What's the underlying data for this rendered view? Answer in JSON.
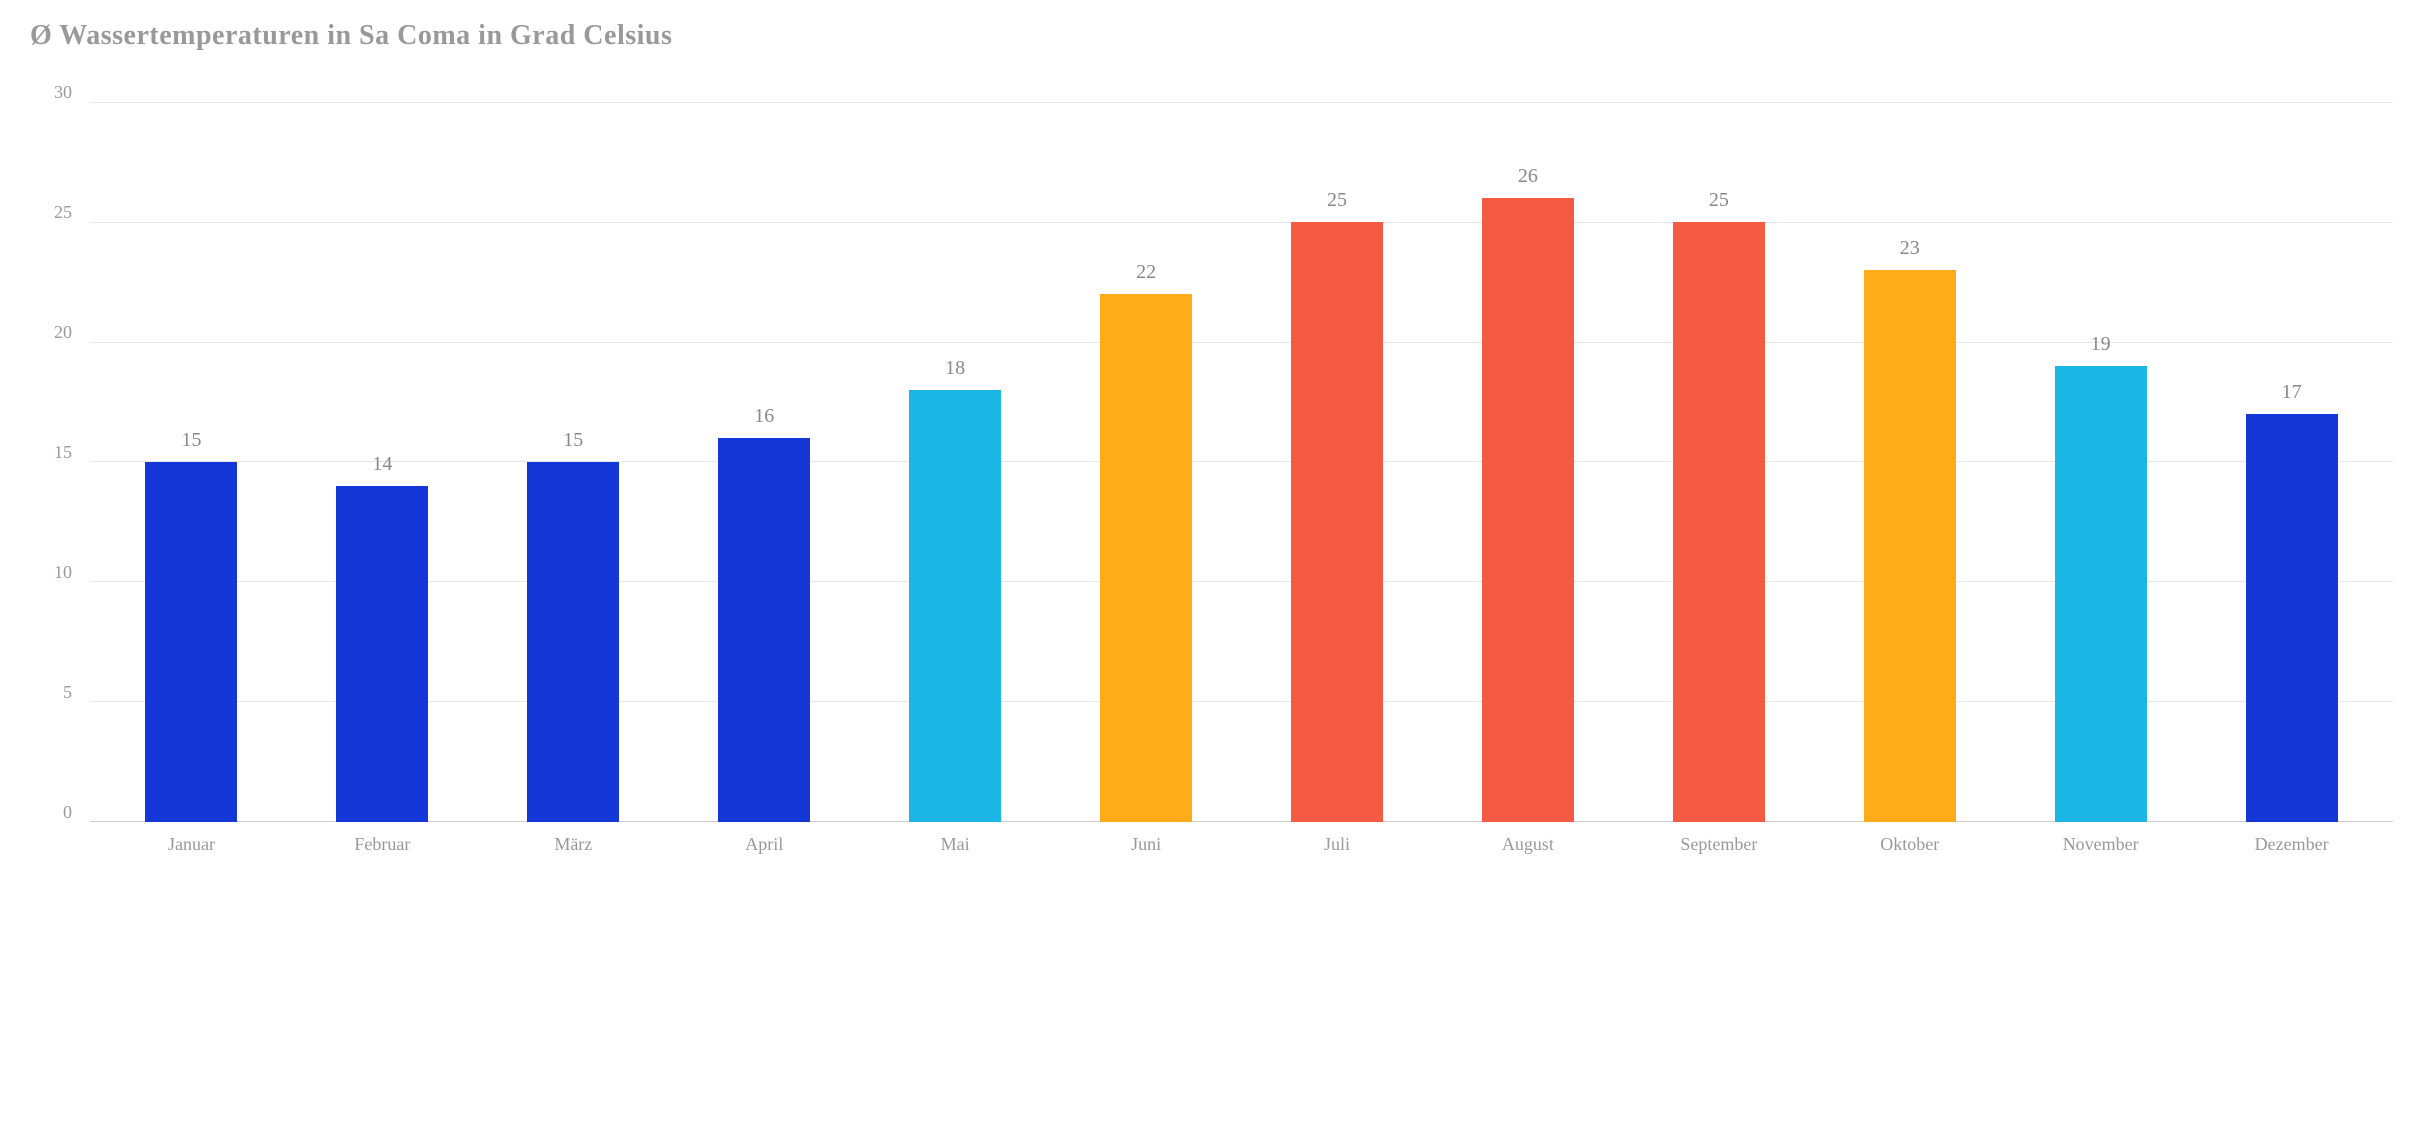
{
  "chart": {
    "type": "bar",
    "title": "Ø Wassertemperaturen in Sa Coma in Grad Celsius",
    "title_color": "#999999",
    "title_fontsize": 28,
    "background_color": "#ffffff",
    "grid_color": "#e6e6e6",
    "axis_label_color": "#999999",
    "axis_label_fontsize": 18,
    "value_label_color": "#888888",
    "value_label_fontsize": 20,
    "ylim": [
      0,
      30
    ],
    "ytick_step": 5,
    "yticks": [
      30,
      25,
      20,
      15,
      10,
      5,
      0
    ],
    "bar_width": 0.72,
    "categories": [
      "Januar",
      "Februar",
      "März",
      "April",
      "Mai",
      "Juni",
      "Juli",
      "August",
      "September",
      "Oktober",
      "November",
      "Dezember"
    ],
    "values": [
      15,
      14,
      15,
      16,
      18,
      22,
      25,
      26,
      25,
      23,
      19,
      17
    ],
    "bar_colors": [
      "#1637d8",
      "#1637d8",
      "#1637d8",
      "#1637d8",
      "#1bb6e6",
      "#ffab1a",
      "#f45b42",
      "#f45b42",
      "#f45b42",
      "#ffab1a",
      "#1bb6e6",
      "#1637d8"
    ]
  }
}
